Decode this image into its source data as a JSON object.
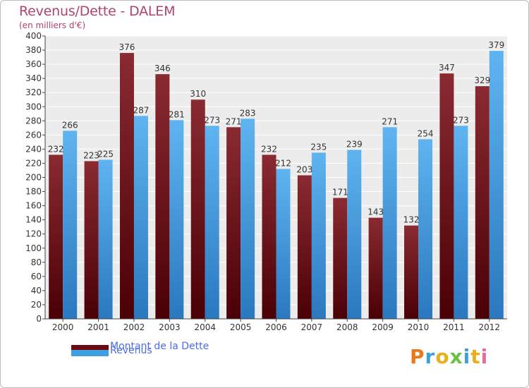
{
  "title": "Revenus/Dette - DALEM",
  "subtitle": "(en milliers d'€)",
  "colors": {
    "dette": "#7a1f24",
    "revenus": "#3d9fe0",
    "title": "#b0436c",
    "legend_text": "#4b6cf0"
  },
  "legend": {
    "items": [
      {
        "label": "Montant de la Dette",
        "color": "#6b0a10"
      },
      {
        "label": "Revenus",
        "color": "#3d9fe0"
      }
    ]
  },
  "logo": {
    "text": "Proxiti"
  },
  "chart_data": {
    "type": "bar",
    "categories": [
      "2000",
      "2001",
      "2002",
      "2003",
      "2004",
      "2005",
      "2006",
      "2007",
      "2008",
      "2009",
      "2010",
      "2011",
      "2012"
    ],
    "series": [
      {
        "name": "Montant de la Dette",
        "values": [
          232,
          223,
          376,
          346,
          310,
          271,
          232,
          203,
          171,
          143,
          132,
          347,
          329
        ]
      },
      {
        "name": "Revenus",
        "values": [
          266,
          225,
          287,
          281,
          273,
          283,
          212,
          235,
          239,
          271,
          254,
          273,
          379
        ]
      }
    ],
    "data_labels": [
      [
        "232",
        "223",
        "376",
        "346",
        "310",
        "271",
        "232",
        "203",
        "171",
        "143",
        "132",
        "347",
        "329"
      ],
      [
        "266",
        "225",
        "287",
        "281",
        "273",
        "283",
        "212",
        "235",
        "239",
        "271",
        "254",
        "273",
        "379"
      ]
    ],
    "title": "Revenus/Dette - DALEM",
    "xlabel": "",
    "ylabel": "",
    "ylim": [
      0,
      400
    ],
    "ytick_step": 20,
    "grid": true,
    "legend_position": "bottom-left"
  }
}
